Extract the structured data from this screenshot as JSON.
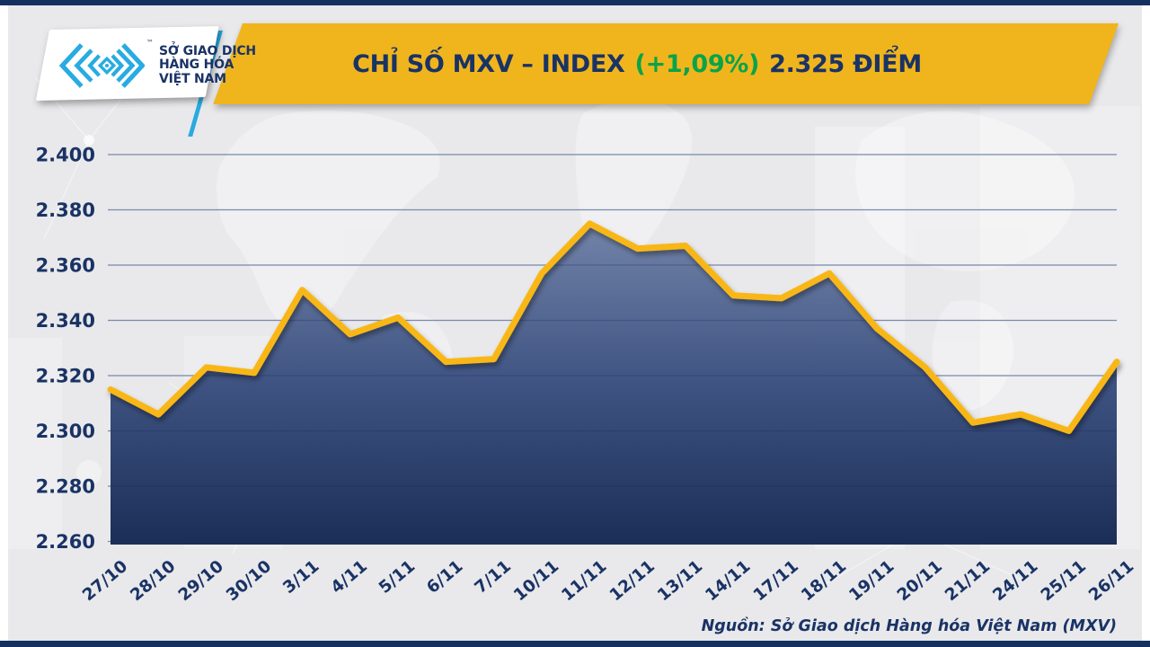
{
  "header": {
    "logo": {
      "trademark": "™",
      "lines": [
        "SỞ GIAO DỊCH",
        "HÀNG HÓA",
        "VIỆT NAM"
      ]
    },
    "title": {
      "prefix": "CHỈ SỐ MXV – INDEX",
      "change": "(+1,09%)",
      "value": "2.325 ĐIỂM"
    }
  },
  "footer": {
    "source": "Nguồn: Sở Giao dịch Hàng hóa Việt Nam (MXV)"
  },
  "colors": {
    "banner_yellow": "#f0b51d",
    "line_gold": "#f8b713",
    "navy_text": "#1a3365",
    "green_change": "#0aa348",
    "area_top": "#6e80a6",
    "area_bottom": "#1b2e57",
    "background": "#e9e9eb",
    "logo_blue": "#29abe2",
    "frame_navy": "#14305f"
  },
  "chart_data": {
    "type": "area",
    "title": "CHỈ SỐ MXV – INDEX (+1,09%) 2.325 ĐIỂM",
    "categories": [
      "27/10",
      "28/10",
      "29/10",
      "30/10",
      "3/11",
      "4/11",
      "5/11",
      "6/11",
      "7/11",
      "10/11",
      "11/11",
      "12/11",
      "13/11",
      "14/11",
      "17/11",
      "18/11",
      "19/11",
      "20/11",
      "21/11",
      "24/11",
      "25/11",
      "26/11"
    ],
    "values": [
      2315,
      2306,
      2323,
      2321,
      2351,
      2335,
      2341,
      2325,
      2326,
      2357,
      2375,
      2366,
      2367,
      2349,
      2348,
      2357,
      2337,
      2323,
      2303,
      2306,
      2300,
      2325
    ],
    "unit_note": "values shown with Vietnamese thousands separator, e.g. 2.325 điểm",
    "y_ticks": [
      "2.400",
      "2.380",
      "2.360",
      "2.340",
      "2.320",
      "2.300",
      "2.280",
      "2.260"
    ],
    "y_tick_values": [
      2400,
      2380,
      2360,
      2340,
      2320,
      2300,
      2280,
      2260
    ],
    "ylim": [
      2260,
      2400
    ],
    "xlabel": "",
    "ylabel": "",
    "grid": true,
    "legend": false
  }
}
